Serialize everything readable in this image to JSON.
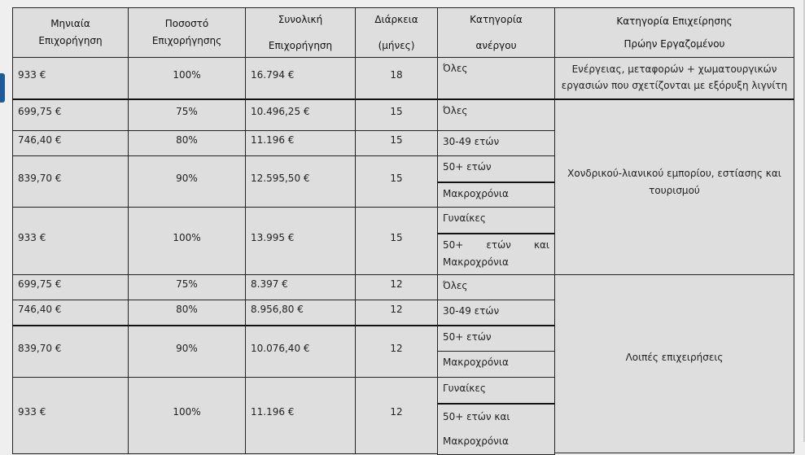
{
  "header": {
    "monthly": [
      "Μηνιαία",
      "Επιχορήγηση"
    ],
    "percent": [
      "Ποσοστό",
      "Επιχορήγησης"
    ],
    "total": [
      "Συνολική",
      "Επιχορήγηση"
    ],
    "duration": [
      "Διάρκεια",
      "(μήνες)"
    ],
    "category": [
      "Κατηγορία",
      "ανέργου"
    ],
    "business": [
      "Κατηγορία Επιχείρησης",
      "Πρώην Εργαζομένου"
    ]
  },
  "rows": [
    {
      "monthly": "933 €",
      "percent": "100%",
      "total": "16.794 €",
      "duration": "18",
      "categories": [
        "Όλες"
      ]
    },
    {
      "monthly": "699,75 €",
      "percent": "75%",
      "total": "10.496,25 €",
      "duration": "15",
      "categories": [
        "Όλες"
      ]
    },
    {
      "monthly": "746,40 €",
      "percent": "80%",
      "total": "11.196 €",
      "duration": "15",
      "categories": [
        "30-49 ετών"
      ]
    },
    {
      "monthly": "839,70 €",
      "percent": "90%",
      "total": "12.595,50 €",
      "duration": "15",
      "categories": [
        "50+ ετών",
        "Μακροχρόνια"
      ]
    },
    {
      "monthly": "933 €",
      "percent": "100%",
      "total": "13.995 €",
      "duration": "15",
      "categories": [
        "Γυναίκες",
        "50+ ετών και Μακροχρόνια"
      ]
    },
    {
      "monthly": "699,75 €",
      "percent": "75%",
      "total": "8.397 €",
      "duration": "12",
      "categories": [
        "Όλες"
      ]
    },
    {
      "monthly": "746,40 €",
      "percent": "80%",
      "total": "8.956,80 €",
      "duration": "12",
      "categories": [
        "30-49 ετών"
      ]
    },
    {
      "monthly": "839,70 €",
      "percent": "90%",
      "total": "10.076,40 €",
      "duration": "12",
      "categories": [
        "50+ ετών",
        "Μακροχρόνια"
      ]
    },
    {
      "monthly": "933 €",
      "percent": "100%",
      "total": "11.196 €",
      "duration": "12",
      "categories": [
        "Γυναίκες",
        "50+ ετών και Μακροχρόνια"
      ]
    }
  ],
  "business_groups": [
    "Ενέργειας, μεταφορών + χωματουργικών εργασιών που σχετίζονται με εξόρυξη λιγνίτη",
    "Χονδρικού-λιανικού εμπορίου, εστίασης και τουρισμού",
    "Λοιπές επιχειρήσεις"
  ]
}
